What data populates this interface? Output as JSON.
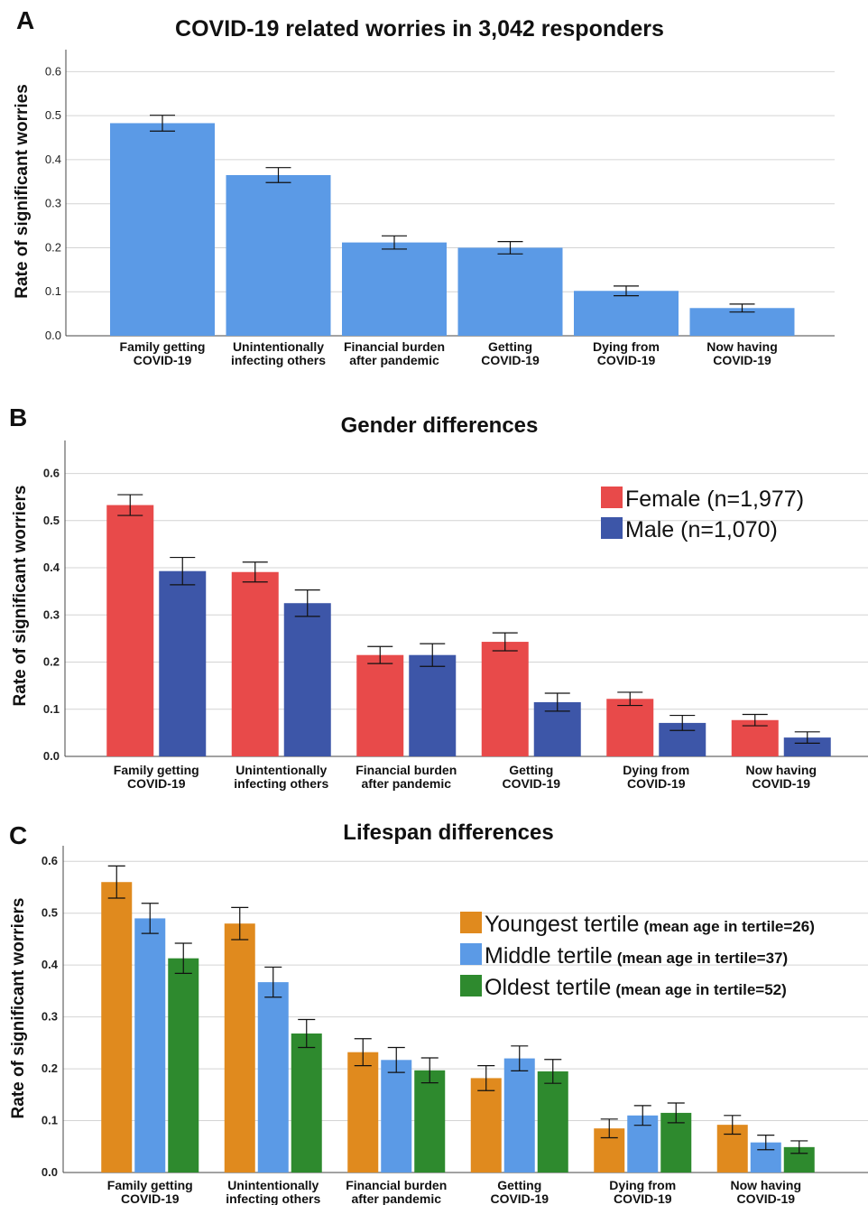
{
  "chart_data": [
    {
      "panel": "A",
      "type": "bar",
      "title": "COVID-19 related worries in 3,042 responders",
      "ylabel": "Rate of significant worries",
      "ylim": [
        0,
        0.65
      ],
      "yticks": [
        "0.0",
        "0.1",
        "0.2",
        "0.3",
        "0.4",
        "0.5",
        "0.6"
      ],
      "grid": true,
      "categories": [
        [
          "Family getting",
          "COVID-19"
        ],
        [
          "Unintentionally",
          "infecting others"
        ],
        [
          "Financial burden",
          "after pandemic"
        ],
        [
          "Getting",
          "COVID-19"
        ],
        [
          "Dying from",
          "COVID-19"
        ],
        [
          "Now having",
          "COVID-19"
        ]
      ],
      "series": [
        {
          "color": "#5b9ae6",
          "values": [
            0.483,
            0.365,
            0.212,
            0.2,
            0.102,
            0.063
          ],
          "errors": [
            0.018,
            0.017,
            0.015,
            0.014,
            0.011,
            0.009
          ]
        }
      ]
    },
    {
      "panel": "B",
      "type": "bar",
      "title": "Gender differences",
      "ylabel": "Rate of significant worriers",
      "ylim": [
        0,
        0.67
      ],
      "yticks": [
        "0.0",
        "0.1",
        "0.2",
        "0.3",
        "0.4",
        "0.5",
        "0.6"
      ],
      "grid": true,
      "legend_position": "top-right",
      "categories": [
        [
          "Family getting",
          "COVID-19"
        ],
        [
          "Unintentionally",
          "infecting others"
        ],
        [
          "Financial burden",
          "after pandemic"
        ],
        [
          "Getting",
          "COVID-19"
        ],
        [
          "Dying from",
          "COVID-19"
        ],
        [
          "Now having",
          "COVID-19"
        ]
      ],
      "series": [
        {
          "name": "Female (n=1,977)",
          "note": "",
          "color": "#e84a4a",
          "values": [
            0.533,
            0.391,
            0.215,
            0.243,
            0.122,
            0.077
          ],
          "errors": [
            0.022,
            0.021,
            0.018,
            0.019,
            0.014,
            0.012
          ]
        },
        {
          "name": "Male (n=1,070)",
          "note": "",
          "color": "#3d56a8",
          "values": [
            0.393,
            0.325,
            0.215,
            0.115,
            0.071,
            0.04
          ],
          "errors": [
            0.029,
            0.028,
            0.024,
            0.019,
            0.016,
            0.012
          ]
        }
      ]
    },
    {
      "panel": "C",
      "type": "bar",
      "title": "Lifespan differences",
      "ylabel": "Rate of significant worriers",
      "ylim": [
        0,
        0.63
      ],
      "yticks": [
        "0.0",
        "0.1",
        "0.2",
        "0.3",
        "0.4",
        "0.5",
        "0.6"
      ],
      "grid": true,
      "legend_position": "top-right",
      "categories": [
        [
          "Family getting",
          "COVID-19"
        ],
        [
          "Unintentionally",
          "infecting others"
        ],
        [
          "Financial burden",
          "after pandemic"
        ],
        [
          "Getting",
          "COVID-19"
        ],
        [
          "Dying from",
          "COVID-19"
        ],
        [
          "Now having",
          "COVID-19"
        ]
      ],
      "series": [
        {
          "name": "Youngest tertile",
          "note": "(mean age in tertile=26)",
          "color": "#e08a1e",
          "values": [
            0.56,
            0.48,
            0.232,
            0.182,
            0.085,
            0.092
          ],
          "errors": [
            0.031,
            0.031,
            0.026,
            0.024,
            0.018,
            0.018
          ]
        },
        {
          "name": "Middle tertile",
          "note": "(mean age in tertile=37)",
          "color": "#5b9ae6",
          "values": [
            0.49,
            0.367,
            0.217,
            0.22,
            0.11,
            0.058
          ],
          "errors": [
            0.029,
            0.029,
            0.024,
            0.024,
            0.019,
            0.014
          ]
        },
        {
          "name": "Oldest tertile",
          "note": "(mean age in tertile=52)",
          "color": "#2e8a2e",
          "values": [
            0.413,
            0.268,
            0.197,
            0.195,
            0.115,
            0.049
          ],
          "errors": [
            0.029,
            0.027,
            0.024,
            0.023,
            0.019,
            0.012
          ]
        }
      ]
    }
  ]
}
